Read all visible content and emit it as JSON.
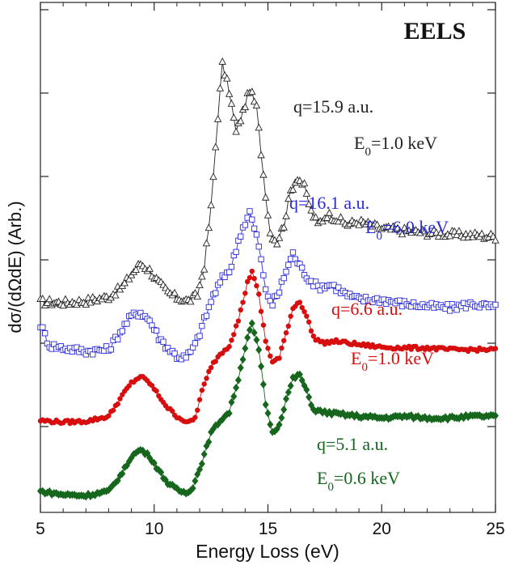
{
  "chart_data": {
    "type": "line",
    "title": "EELS",
    "xlabel": "Energy Loss (eV)",
    "ylabel": "dσ/(dΩdE) (Arb.)",
    "xlim": [
      5,
      25
    ],
    "ylim": [
      0,
      5
    ],
    "x_ticks": [
      "5",
      "10",
      "15",
      "20",
      "25"
    ],
    "y_ticks_labeled": false,
    "grid": false,
    "legend": "none",
    "annotations": [
      {
        "q": "q=15.9 a.u.",
        "E": "=1.0 keV"
      },
      {
        "q": "q=16.1 a.u.",
        "E": "=6.0 keV"
      },
      {
        "q": "q=6.6 a.u.",
        "E": "=1.0 keV"
      },
      {
        "q": "q=5.1 a.u.",
        "E": "=0.6 keV"
      }
    ],
    "e_symbol": "E",
    "e_subscript": "0",
    "series": [
      {
        "marker": "open-triangle",
        "color": "#222222",
        "points": [
          [
            5.0,
            2.27
          ],
          [
            6.0,
            2.26
          ],
          [
            7.0,
            2.28
          ],
          [
            8.0,
            2.33
          ],
          [
            8.6,
            2.45
          ],
          [
            9.0,
            2.6
          ],
          [
            9.4,
            2.73
          ],
          [
            9.8,
            2.65
          ],
          [
            10.2,
            2.5
          ],
          [
            10.6,
            2.38
          ],
          [
            11.0,
            2.32
          ],
          [
            11.5,
            2.28
          ],
          [
            11.9,
            2.35
          ],
          [
            12.2,
            2.7
          ],
          [
            12.5,
            3.4
          ],
          [
            12.8,
            4.5
          ],
          [
            13.0,
            5.12
          ],
          [
            13.3,
            4.8
          ],
          [
            13.6,
            4.3
          ],
          [
            13.9,
            4.55
          ],
          [
            14.2,
            4.82
          ],
          [
            14.5,
            4.6
          ],
          [
            14.8,
            3.8
          ],
          [
            15.1,
            3.1
          ],
          [
            15.4,
            2.99
          ],
          [
            15.7,
            3.2
          ],
          [
            16.0,
            3.6
          ],
          [
            16.3,
            3.77
          ],
          [
            16.6,
            3.65
          ],
          [
            16.9,
            3.35
          ],
          [
            17.2,
            3.2
          ],
          [
            17.6,
            3.32
          ],
          [
            18.0,
            3.27
          ],
          [
            18.5,
            3.2
          ],
          [
            19.0,
            3.23
          ],
          [
            20.0,
            3.15
          ],
          [
            21.0,
            3.12
          ],
          [
            22.0,
            3.1
          ],
          [
            23.0,
            3.08
          ],
          [
            24.0,
            3.07
          ],
          [
            25.0,
            3.05
          ]
        ]
      },
      {
        "marker": "open-square",
        "color": "#2a2ad8",
        "points": [
          [
            5.0,
            2.0
          ],
          [
            5.4,
            1.75
          ],
          [
            6.0,
            1.72
          ],
          [
            7.0,
            1.68
          ],
          [
            8.0,
            1.7
          ],
          [
            8.6,
            1.95
          ],
          [
            9.0,
            2.1
          ],
          [
            9.4,
            2.15
          ],
          [
            9.8,
            2.05
          ],
          [
            10.2,
            1.85
          ],
          [
            10.6,
            1.72
          ],
          [
            11.0,
            1.62
          ],
          [
            11.4,
            1.6
          ],
          [
            11.8,
            1.75
          ],
          [
            12.2,
            2.05
          ],
          [
            12.6,
            2.35
          ],
          [
            13.0,
            2.55
          ],
          [
            13.4,
            2.7
          ],
          [
            13.8,
            3.1
          ],
          [
            14.2,
            3.35
          ],
          [
            14.6,
            2.95
          ],
          [
            14.9,
            2.4
          ],
          [
            15.2,
            2.25
          ],
          [
            15.5,
            2.4
          ],
          [
            15.8,
            2.65
          ],
          [
            16.1,
            2.85
          ],
          [
            16.4,
            2.7
          ],
          [
            16.8,
            2.55
          ],
          [
            17.2,
            2.45
          ],
          [
            17.8,
            2.48
          ],
          [
            18.5,
            2.35
          ],
          [
            19.0,
            2.3
          ],
          [
            20.0,
            2.3
          ],
          [
            21.0,
            2.25
          ],
          [
            22.0,
            2.22
          ],
          [
            23.0,
            2.2
          ],
          [
            24.0,
            2.25
          ],
          [
            25.0,
            2.2
          ]
        ]
      },
      {
        "marker": "filled-circle",
        "color": "#d80e0e",
        "points": [
          [
            5.0,
            0.85
          ],
          [
            6.0,
            0.83
          ],
          [
            7.0,
            0.84
          ],
          [
            8.0,
            0.9
          ],
          [
            8.6,
            1.15
          ],
          [
            9.0,
            1.3
          ],
          [
            9.4,
            1.38
          ],
          [
            9.8,
            1.3
          ],
          [
            10.2,
            1.15
          ],
          [
            10.6,
            1.0
          ],
          [
            11.0,
            0.9
          ],
          [
            11.5,
            0.82
          ],
          [
            11.8,
            0.88
          ],
          [
            12.1,
            1.2
          ],
          [
            12.5,
            1.5
          ],
          [
            12.9,
            1.65
          ],
          [
            13.3,
            1.75
          ],
          [
            13.7,
            2.05
          ],
          [
            14.1,
            2.5
          ],
          [
            14.3,
            2.65
          ],
          [
            14.6,
            2.35
          ],
          [
            14.9,
            1.8
          ],
          [
            15.2,
            1.55
          ],
          [
            15.5,
            1.6
          ],
          [
            15.8,
            1.9
          ],
          [
            16.1,
            2.2
          ],
          [
            16.4,
            2.28
          ],
          [
            16.7,
            2.1
          ],
          [
            17.0,
            1.85
          ],
          [
            17.4,
            1.78
          ],
          [
            18.0,
            1.8
          ],
          [
            19.0,
            1.76
          ],
          [
            20.0,
            1.73
          ],
          [
            21.0,
            1.72
          ],
          [
            22.0,
            1.72
          ],
          [
            23.0,
            1.7
          ],
          [
            24.0,
            1.7
          ],
          [
            25.0,
            1.7
          ]
        ]
      },
      {
        "marker": "filled-diamond",
        "color": "#16661e",
        "points": [
          [
            5.0,
            0.0
          ],
          [
            6.0,
            -0.04
          ],
          [
            7.0,
            -0.05
          ],
          [
            8.0,
            0.0
          ],
          [
            8.6,
            0.22
          ],
          [
            9.0,
            0.42
          ],
          [
            9.4,
            0.5
          ],
          [
            9.8,
            0.42
          ],
          [
            10.2,
            0.25
          ],
          [
            10.6,
            0.1
          ],
          [
            11.0,
            0.02
          ],
          [
            11.4,
            -0.02
          ],
          [
            11.7,
            0.05
          ],
          [
            12.1,
            0.35
          ],
          [
            12.5,
            0.7
          ],
          [
            12.9,
            0.85
          ],
          [
            13.3,
            0.95
          ],
          [
            13.7,
            1.35
          ],
          [
            14.1,
            1.85
          ],
          [
            14.3,
            2.0
          ],
          [
            14.6,
            1.7
          ],
          [
            14.9,
            1.05
          ],
          [
            15.2,
            0.7
          ],
          [
            15.5,
            0.8
          ],
          [
            15.8,
            1.1
          ],
          [
            16.1,
            1.35
          ],
          [
            16.4,
            1.4
          ],
          [
            16.7,
            1.2
          ],
          [
            17.0,
            0.98
          ],
          [
            17.4,
            0.95
          ],
          [
            18.0,
            0.93
          ],
          [
            19.0,
            0.9
          ],
          [
            20.0,
            0.88
          ],
          [
            21.0,
            0.9
          ],
          [
            22.0,
            0.88
          ],
          [
            23.0,
            0.88
          ],
          [
            24.0,
            0.9
          ],
          [
            25.0,
            0.9
          ]
        ]
      }
    ]
  }
}
